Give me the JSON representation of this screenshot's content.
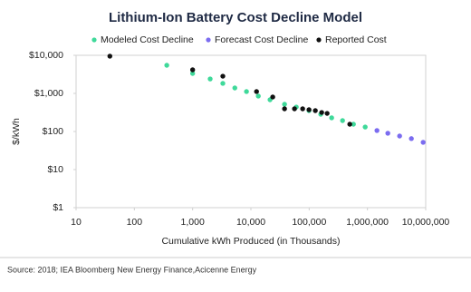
{
  "chart_data": {
    "type": "scatter",
    "title": "Lithium-Ion Battery Cost Decline Model",
    "x_label": "Cumulative kWh Produced (in Thousands)",
    "y_label": "$/kWh",
    "source": "Source: 2018; IEA Bloomberg New Energy Finance,Acicenne Energy",
    "x_scale": "log",
    "y_scale": "log",
    "grid": false,
    "legend": "top",
    "xlim": [
      10,
      10000000
    ],
    "xticks": [
      10,
      100,
      {
        "value": 1000,
        "label": "1,000"
      },
      {
        "value": 10000,
        "label": "10,000"
      },
      {
        "value": 100000,
        "label": "100,000"
      },
      {
        "value": 1000000,
        "label": "1,000,000"
      },
      {
        "value": 10000000,
        "label": "10,000,000"
      }
    ],
    "ylim": [
      1,
      10000
    ],
    "yticks": [
      {
        "value": 1,
        "label": "$1"
      },
      {
        "value": 10,
        "label": "$10"
      },
      {
        "value": 100,
        "label": "$100"
      },
      {
        "value": 1000,
        "label": "$1,000"
      },
      {
        "value": 10000,
        "label": "$10,000"
      }
    ],
    "series": [
      {
        "name": "Modeled Cost Decline",
        "color": "#3fd99a",
        "x": [
          360,
          1000,
          2000,
          3300,
          5300,
          8400,
          13400,
          21300,
          37800,
          60100,
          99300,
          158000,
          243000,
          374000,
          575000,
          915000
        ],
        "values": [
          5470,
          3340,
          2400,
          1830,
          1390,
          1117,
          849,
          681,
          518,
          439,
          353,
          283,
          228,
          193,
          155,
          131
        ]
      },
      {
        "name": "Forecast Cost Decline",
        "color": "#7b6cf0",
        "x": [
          1456000,
          2238000,
          3565000,
          5675000,
          9040000
        ],
        "values": [
          106,
          90,
          76,
          65,
          52
        ]
      },
      {
        "name": "Reported Cost",
        "color": "#111111",
        "x": [
          38,
          1000,
          3300,
          12500,
          23700,
          37800,
          56000,
          77300,
          99300,
          127600,
          164000,
          203300,
          497700
        ],
        "values": [
          9500,
          4160,
          2830,
          1117,
          804,
          394,
          394,
          394,
          373,
          353,
          316,
          299,
          155
        ]
      }
    ]
  }
}
